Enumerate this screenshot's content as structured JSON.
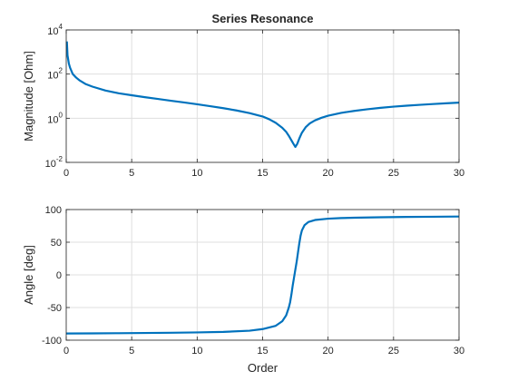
{
  "chart_data": [
    {
      "type": "line",
      "title": "Series Resonance",
      "xlabel": "",
      "ylabel": "Magnitude [Ohm]",
      "yscale": "log",
      "xlim": [
        0,
        30
      ],
      "ylim": [
        0.01,
        10000
      ],
      "xticks": [
        0,
        5,
        10,
        15,
        20,
        25,
        30
      ],
      "yticks": [
        {
          "value": 0.01,
          "base": "10",
          "exp": "-2"
        },
        {
          "value": 1,
          "base": "10",
          "exp": "0"
        },
        {
          "value": 100,
          "base": "10",
          "exp": "2"
        },
        {
          "value": 10000,
          "base": "10",
          "exp": "4"
        }
      ],
      "grid": true,
      "series": [
        {
          "color": "#0072bd",
          "x": [
            0.05,
            0.1,
            0.2,
            0.3,
            0.5,
            0.75,
            1,
            1.5,
            2,
            3,
            4,
            5,
            6,
            7,
            8,
            9,
            10,
            11,
            12,
            13,
            14,
            15,
            15.5,
            16,
            16.5,
            16.8,
            17,
            17.2,
            17.35,
            17.5,
            17.65,
            17.8,
            18,
            18.3,
            18.6,
            19,
            19.5,
            20,
            21,
            22,
            23,
            24,
            25,
            26,
            27,
            28,
            29,
            30
          ],
          "y": [
            3000,
            700,
            300,
            190,
            100,
            70,
            53,
            35,
            27,
            18,
            13.5,
            11,
            9,
            7.5,
            6.2,
            5.2,
            4.3,
            3.5,
            2.85,
            2.25,
            1.7,
            1.2,
            0.9,
            0.62,
            0.37,
            0.24,
            0.16,
            0.1,
            0.07,
            0.05,
            0.07,
            0.12,
            0.22,
            0.4,
            0.58,
            0.8,
            1.05,
            1.3,
            1.75,
            2.15,
            2.55,
            2.95,
            3.35,
            3.7,
            4.05,
            4.4,
            4.75,
            5.1
          ]
        }
      ]
    },
    {
      "type": "line",
      "title": "",
      "xlabel": "Order",
      "ylabel": "Angle [deg]",
      "yscale": "linear",
      "xlim": [
        0,
        30
      ],
      "ylim": [
        -100,
        100
      ],
      "xticks": [
        0,
        5,
        10,
        15,
        20,
        25,
        30
      ],
      "yticks": [
        -100,
        -50,
        0,
        50,
        100
      ],
      "grid": true,
      "series": [
        {
          "color": "#0072bd",
          "x": [
            0,
            2,
            4,
            6,
            8,
            10,
            12,
            14,
            15,
            16,
            16.5,
            16.8,
            17,
            17.1,
            17.2,
            17.3,
            17.4,
            17.5,
            17.6,
            17.7,
            17.8,
            17.9,
            18,
            18.2,
            18.5,
            19,
            20,
            21,
            22,
            24,
            26,
            28,
            30
          ],
          "y": [
            -89.8,
            -89.6,
            -89.3,
            -89,
            -88.6,
            -88.1,
            -87.3,
            -85.5,
            -83,
            -78,
            -71,
            -62,
            -50,
            -42,
            -30,
            -16,
            -4,
            8,
            20,
            34,
            48,
            60,
            68,
            76,
            81,
            84,
            86,
            87,
            87.5,
            88.2,
            88.7,
            89,
            89.3
          ]
        }
      ]
    }
  ]
}
